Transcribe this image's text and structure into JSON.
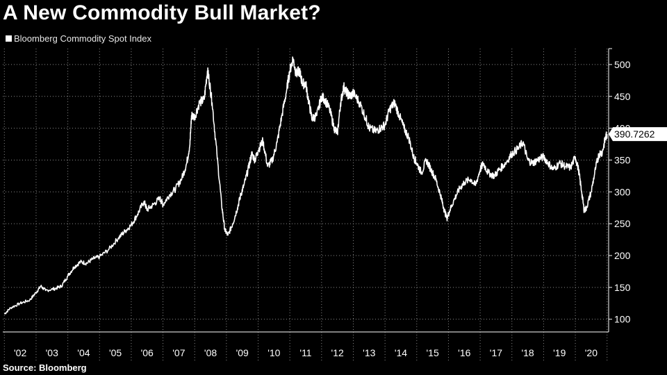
{
  "chart_data": {
    "type": "line",
    "title": "A New Commodity Bull Market?",
    "source": "Source: Bloomberg",
    "series": [
      {
        "name": "Bloomberg Commodity Spot Index",
        "color": "#ffffff",
        "last_value_label": "390.7262",
        "points": [
          [
            2002.0,
            108
          ],
          [
            2002.2,
            118
          ],
          [
            2002.5,
            125
          ],
          [
            2002.8,
            130
          ],
          [
            2003.0,
            142
          ],
          [
            2003.15,
            152
          ],
          [
            2003.3,
            145
          ],
          [
            2003.6,
            148
          ],
          [
            2003.8,
            152
          ],
          [
            2004.0,
            168
          ],
          [
            2004.2,
            182
          ],
          [
            2004.4,
            190
          ],
          [
            2004.6,
            188
          ],
          [
            2004.8,
            195
          ],
          [
            2005.0,
            198
          ],
          [
            2005.3,
            210
          ],
          [
            2005.6,
            228
          ],
          [
            2005.8,
            238
          ],
          [
            2006.0,
            248
          ],
          [
            2006.2,
            265
          ],
          [
            2006.4,
            285
          ],
          [
            2006.5,
            272
          ],
          [
            2006.7,
            280
          ],
          [
            2006.9,
            290
          ],
          [
            2007.0,
            280
          ],
          [
            2007.2,
            295
          ],
          [
            2007.4,
            305
          ],
          [
            2007.6,
            322
          ],
          [
            2007.75,
            345
          ],
          [
            2007.85,
            375
          ],
          [
            2007.9,
            420
          ],
          [
            2008.0,
            418
          ],
          [
            2008.15,
            440
          ],
          [
            2008.3,
            445
          ],
          [
            2008.4,
            490
          ],
          [
            2008.45,
            478
          ],
          [
            2008.55,
            440
          ],
          [
            2008.7,
            360
          ],
          [
            2008.85,
            280
          ],
          [
            2008.95,
            240
          ],
          [
            2009.05,
            232
          ],
          [
            2009.2,
            250
          ],
          [
            2009.35,
            275
          ],
          [
            2009.45,
            295
          ],
          [
            2009.55,
            310
          ],
          [
            2009.7,
            338
          ],
          [
            2009.8,
            360
          ],
          [
            2009.9,
            350
          ],
          [
            2010.0,
            365
          ],
          [
            2010.15,
            380
          ],
          [
            2010.3,
            340
          ],
          [
            2010.45,
            350
          ],
          [
            2010.6,
            378
          ],
          [
            2010.75,
            420
          ],
          [
            2010.9,
            460
          ],
          [
            2011.0,
            490
          ],
          [
            2011.1,
            510
          ],
          [
            2011.2,
            485
          ],
          [
            2011.3,
            490
          ],
          [
            2011.4,
            470
          ],
          [
            2011.5,
            470
          ],
          [
            2011.6,
            440
          ],
          [
            2011.7,
            415
          ],
          [
            2011.85,
            420
          ],
          [
            2012.0,
            450
          ],
          [
            2012.1,
            445
          ],
          [
            2012.25,
            430
          ],
          [
            2012.4,
            400
          ],
          [
            2012.5,
            392
          ],
          [
            2012.6,
            440
          ],
          [
            2012.7,
            465
          ],
          [
            2012.8,
            455
          ],
          [
            2012.9,
            450
          ],
          [
            2013.0,
            455
          ],
          [
            2013.2,
            440
          ],
          [
            2013.4,
            415
          ],
          [
            2013.5,
            400
          ],
          [
            2013.7,
            395
          ],
          [
            2013.85,
            400
          ],
          [
            2014.0,
            405
          ],
          [
            2014.15,
            430
          ],
          [
            2014.3,
            440
          ],
          [
            2014.45,
            420
          ],
          [
            2014.6,
            400
          ],
          [
            2014.75,
            385
          ],
          [
            2014.9,
            355
          ],
          [
            2015.0,
            345
          ],
          [
            2015.15,
            330
          ],
          [
            2015.3,
            350
          ],
          [
            2015.45,
            335
          ],
          [
            2015.6,
            320
          ],
          [
            2015.75,
            295
          ],
          [
            2015.85,
            275
          ],
          [
            2015.95,
            258
          ],
          [
            2016.05,
            272
          ],
          [
            2016.2,
            290
          ],
          [
            2016.35,
            305
          ],
          [
            2016.5,
            315
          ],
          [
            2016.7,
            320
          ],
          [
            2016.85,
            310
          ],
          [
            2017.0,
            335
          ],
          [
            2017.1,
            345
          ],
          [
            2017.25,
            330
          ],
          [
            2017.45,
            325
          ],
          [
            2017.6,
            335
          ],
          [
            2017.8,
            345
          ],
          [
            2018.0,
            360
          ],
          [
            2018.2,
            368
          ],
          [
            2018.35,
            378
          ],
          [
            2018.5,
            350
          ],
          [
            2018.65,
            345
          ],
          [
            2018.8,
            350
          ],
          [
            2019.0,
            355
          ],
          [
            2019.15,
            345
          ],
          [
            2019.3,
            335
          ],
          [
            2019.5,
            345
          ],
          [
            2019.7,
            340
          ],
          [
            2019.85,
            338
          ],
          [
            2020.0,
            355
          ],
          [
            2020.1,
            335
          ],
          [
            2020.2,
            300
          ],
          [
            2020.28,
            270
          ],
          [
            2020.35,
            275
          ],
          [
            2020.5,
            300
          ],
          [
            2020.65,
            340
          ],
          [
            2020.75,
            360
          ],
          [
            2020.85,
            362
          ],
          [
            2020.95,
            385
          ],
          [
            2021.0,
            390.7262
          ]
        ]
      }
    ],
    "xlim": [
      2001.95,
      2021.05
    ],
    "ylim": [
      80,
      525
    ],
    "y_ticks": [
      100,
      150,
      200,
      250,
      300,
      350,
      400,
      450,
      500
    ],
    "y_tick_labels": [
      "100",
      "150",
      "200",
      "250",
      "300",
      "350",
      "400",
      "450",
      "500"
    ],
    "x_tick_labels": [
      "'02",
      "'03",
      "'04",
      "'05",
      "'06",
      "'07",
      "'08",
      "'09",
      "'10",
      "'11",
      "'12",
      "'13",
      "'14",
      "'15",
      "'16",
      "'17",
      "'18",
      "'19",
      "'20"
    ],
    "grid": true,
    "legend_position": "top-left"
  }
}
